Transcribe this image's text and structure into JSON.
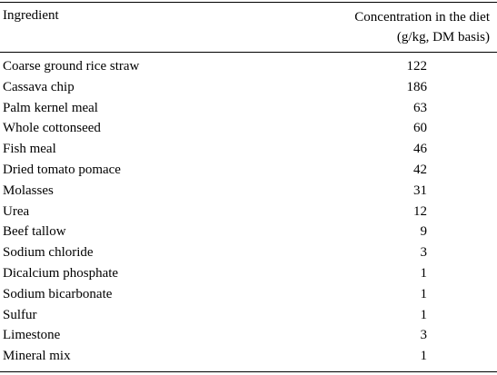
{
  "table": {
    "header": {
      "ingredient": "Ingredient",
      "concentration_line1": "Concentration in the diet",
      "concentration_line2": "(g/kg, DM basis)"
    },
    "rows": [
      {
        "name": "Coarse ground rice straw",
        "value": "122"
      },
      {
        "name": "Cassava chip",
        "value": "186"
      },
      {
        "name": "Palm kernel meal",
        "value": "63"
      },
      {
        "name": "Whole cottonseed",
        "value": "60"
      },
      {
        "name": "Fish meal",
        "value": "46"
      },
      {
        "name": "Dried tomato pomace",
        "value": "42"
      },
      {
        "name": "Molasses",
        "value": "31"
      },
      {
        "name": "Urea",
        "value": "12"
      },
      {
        "name": "Beef tallow",
        "value": "9"
      },
      {
        "name": "Sodium chloride",
        "value": "3"
      },
      {
        "name": "Dicalcium phosphate",
        "value": "1"
      },
      {
        "name": "Sodium bicarbonate",
        "value": "1"
      },
      {
        "name": "Sulfur",
        "value": "1"
      },
      {
        "name": "Limestone",
        "value": "3"
      },
      {
        "name": "Mineral mix",
        "value": "1"
      }
    ]
  }
}
